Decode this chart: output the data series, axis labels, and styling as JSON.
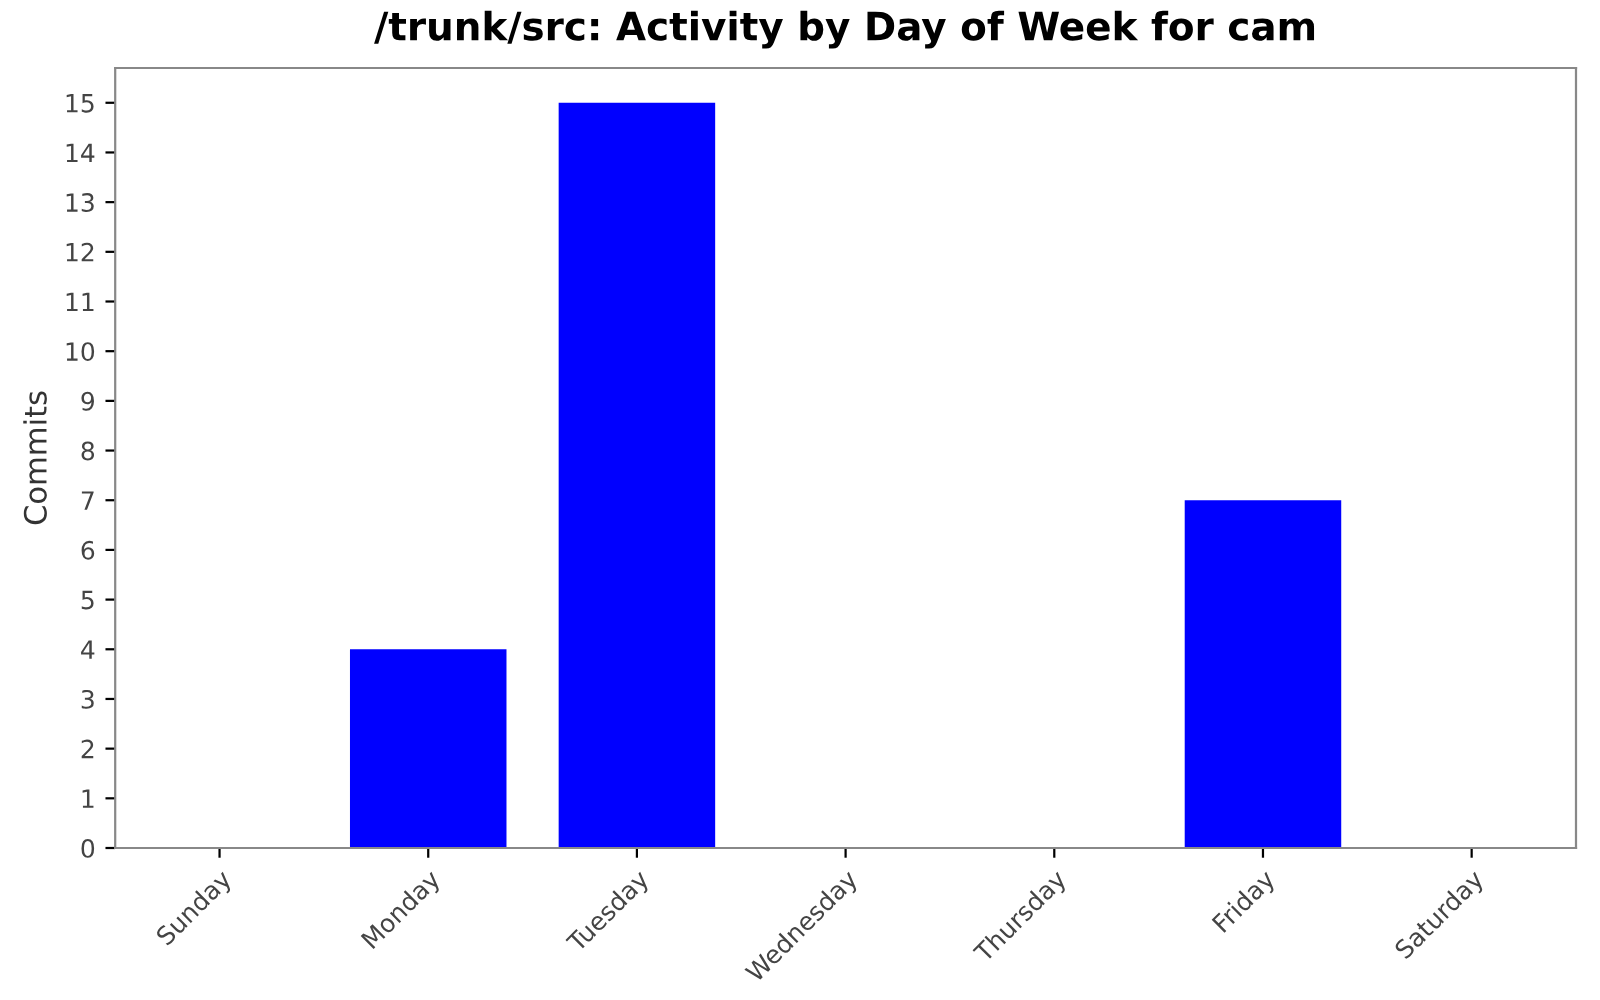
{
  "chart_data": {
    "type": "bar",
    "title": "/trunk/src: Activity by Day of Week for cam",
    "ylabel": "Commits",
    "categories": [
      "Sunday",
      "Monday",
      "Tuesday",
      "Wednesday",
      "Thursday",
      "Friday",
      "Saturday"
    ],
    "values": [
      0,
      4,
      15,
      0,
      0,
      7,
      0
    ],
    "color": "#0000ff",
    "ylim": [
      0,
      15.7
    ],
    "yticks": [
      0,
      1,
      2,
      3,
      4,
      5,
      6,
      7,
      8,
      9,
      10,
      11,
      12,
      13,
      14,
      15
    ],
    "grid": false,
    "legend": false
  }
}
